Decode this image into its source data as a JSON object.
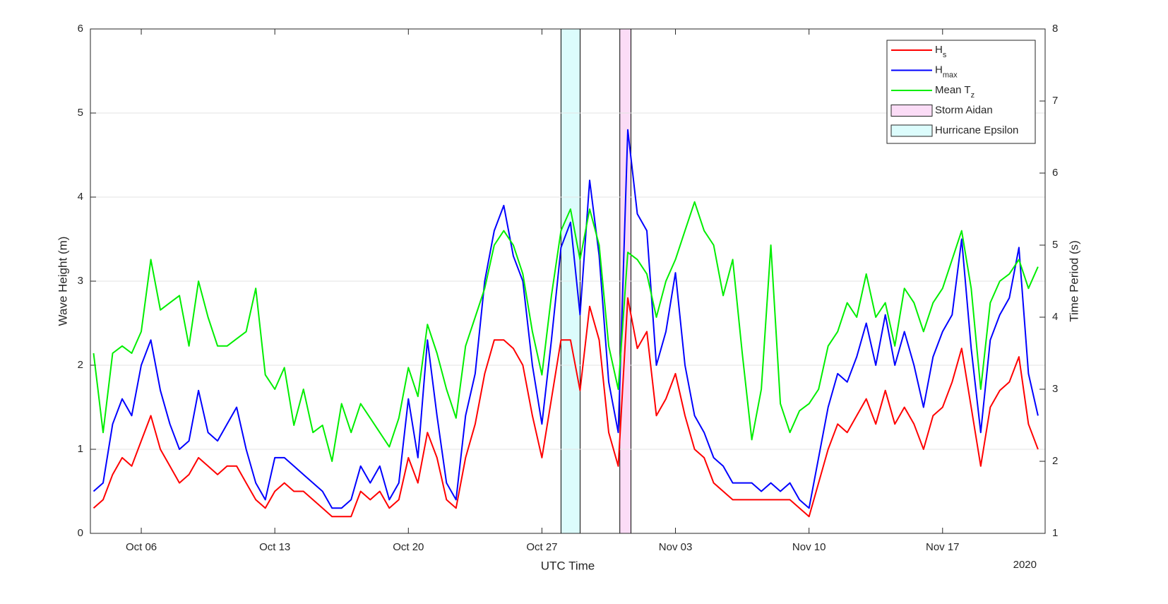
{
  "chart_data": {
    "type": "line",
    "xlabel": "UTC Time",
    "ylabel": "Wave Height (m)",
    "y2label": "Time Period (s)",
    "year_label": "2020",
    "x": [
      "2020-10-03 12:00",
      "2020-10-04 00:00",
      "2020-10-04 12:00",
      "2020-10-05 00:00",
      "2020-10-05 12:00",
      "2020-10-06 00:00",
      "2020-10-06 12:00",
      "2020-10-07 00:00",
      "2020-10-07 12:00",
      "2020-10-08 00:00",
      "2020-10-08 12:00",
      "2020-10-09 00:00",
      "2020-10-09 12:00",
      "2020-10-10 00:00",
      "2020-10-10 12:00",
      "2020-10-11 00:00",
      "2020-10-11 12:00",
      "2020-10-12 00:00",
      "2020-10-12 12:00",
      "2020-10-13 00:00",
      "2020-10-13 12:00",
      "2020-10-14 00:00",
      "2020-10-14 12:00",
      "2020-10-15 00:00",
      "2020-10-15 12:00",
      "2020-10-16 00:00",
      "2020-10-16 12:00",
      "2020-10-17 00:00",
      "2020-10-17 12:00",
      "2020-10-18 00:00",
      "2020-10-18 12:00",
      "2020-10-19 00:00",
      "2020-10-19 12:00",
      "2020-10-20 00:00",
      "2020-10-20 12:00",
      "2020-10-21 00:00",
      "2020-10-21 12:00",
      "2020-10-22 00:00",
      "2020-10-22 12:00",
      "2020-10-23 00:00",
      "2020-10-23 12:00",
      "2020-10-24 00:00",
      "2020-10-24 12:00",
      "2020-10-25 00:00",
      "2020-10-25 12:00",
      "2020-10-26 00:00",
      "2020-10-26 12:00",
      "2020-10-27 00:00",
      "2020-10-27 12:00",
      "2020-10-28 00:00",
      "2020-10-28 12:00",
      "2020-10-29 00:00",
      "2020-10-29 12:00",
      "2020-10-30 00:00",
      "2020-10-30 12:00",
      "2020-10-31 00:00",
      "2020-10-31 12:00",
      "2020-11-01 00:00",
      "2020-11-01 12:00",
      "2020-11-02 00:00",
      "2020-11-02 12:00",
      "2020-11-03 00:00",
      "2020-11-03 12:00",
      "2020-11-04 00:00",
      "2020-11-04 12:00",
      "2020-11-05 00:00",
      "2020-11-05 12:00",
      "2020-11-06 00:00",
      "2020-11-06 12:00",
      "2020-11-07 00:00",
      "2020-11-07 12:00",
      "2020-11-08 00:00",
      "2020-11-08 12:00",
      "2020-11-09 00:00",
      "2020-11-09 12:00",
      "2020-11-10 00:00",
      "2020-11-10 12:00",
      "2020-11-11 00:00",
      "2020-11-11 12:00",
      "2020-11-12 00:00",
      "2020-11-12 12:00",
      "2020-11-13 00:00",
      "2020-11-13 12:00",
      "2020-11-14 00:00",
      "2020-11-14 12:00",
      "2020-11-15 00:00",
      "2020-11-15 12:00",
      "2020-11-16 00:00",
      "2020-11-16 12:00",
      "2020-11-17 00:00",
      "2020-11-17 12:00",
      "2020-11-18 00:00",
      "2020-11-18 12:00",
      "2020-11-19 00:00",
      "2020-11-19 12:00",
      "2020-11-20 00:00",
      "2020-11-20 12:00",
      "2020-11-21 00:00",
      "2020-11-21 12:00",
      "2020-11-22 00:00"
    ],
    "series": [
      {
        "name": "H",
        "name_sub": "s",
        "color": "#ff0000",
        "values": [
          0.3,
          0.4,
          0.7,
          0.9,
          0.8,
          1.1,
          1.4,
          1.0,
          0.8,
          0.6,
          0.7,
          0.9,
          0.8,
          0.7,
          0.8,
          0.8,
          0.6,
          0.4,
          0.3,
          0.5,
          0.6,
          0.5,
          0.5,
          0.4,
          0.3,
          0.2,
          0.2,
          0.2,
          0.5,
          0.4,
          0.5,
          0.3,
          0.4,
          0.9,
          0.6,
          1.2,
          0.9,
          0.4,
          0.3,
          0.9,
          1.3,
          1.9,
          2.3,
          2.3,
          2.2,
          2.0,
          1.4,
          0.9,
          1.6,
          2.3,
          2.3,
          1.7,
          2.7,
          2.3,
          1.2,
          0.8,
          2.8,
          2.2,
          2.4,
          1.4,
          1.6,
          1.9,
          1.4,
          1.0,
          0.9,
          0.6,
          0.5,
          0.4,
          0.4,
          0.4,
          0.4,
          0.4,
          0.4,
          0.4,
          0.3,
          0.2,
          0.6,
          1.0,
          1.3,
          1.2,
          1.4,
          1.6,
          1.3,
          1.7,
          1.3,
          1.5,
          1.3,
          1.0,
          1.4,
          1.5,
          1.8,
          2.2,
          1.5,
          0.8,
          1.5,
          1.7,
          1.8,
          2.1,
          1.3,
          1.0
        ]
      },
      {
        "name": "H",
        "name_sub": "max",
        "color": "#0000ff",
        "values": [
          0.5,
          0.6,
          1.3,
          1.6,
          1.4,
          2.0,
          2.3,
          1.7,
          1.3,
          1.0,
          1.1,
          1.7,
          1.2,
          1.1,
          1.3,
          1.5,
          1.0,
          0.6,
          0.4,
          0.9,
          0.9,
          0.8,
          0.7,
          0.6,
          0.5,
          0.3,
          0.3,
          0.4,
          0.8,
          0.6,
          0.8,
          0.4,
          0.6,
          1.6,
          0.9,
          2.3,
          1.4,
          0.6,
          0.4,
          1.4,
          1.9,
          3.0,
          3.6,
          3.9,
          3.3,
          3.0,
          2.0,
          1.3,
          2.3,
          3.4,
          3.7,
          2.6,
          4.2,
          3.3,
          1.8,
          1.2,
          4.8,
          3.8,
          3.6,
          2.0,
          2.4,
          3.1,
          2.0,
          1.4,
          1.2,
          0.9,
          0.8,
          0.6,
          0.6,
          0.6,
          0.5,
          0.6,
          0.5,
          0.6,
          0.4,
          0.3,
          0.9,
          1.5,
          1.9,
          1.8,
          2.1,
          2.5,
          2.0,
          2.6,
          2.0,
          2.4,
          2.0,
          1.5,
          2.1,
          2.4,
          2.6,
          3.5,
          2.2,
          1.2,
          2.3,
          2.6,
          2.8,
          3.4,
          1.9,
          1.4
        ]
      },
      {
        "name": "Mean T",
        "name_sub": "z",
        "color": "#00ee00",
        "axis": "y2",
        "values": [
          3.5,
          2.4,
          3.5,
          3.6,
          3.5,
          3.8,
          4.8,
          4.1,
          4.2,
          4.3,
          3.6,
          4.5,
          4.0,
          3.6,
          3.6,
          3.7,
          3.8,
          4.4,
          3.2,
          3.0,
          3.3,
          2.5,
          3.0,
          2.4,
          2.5,
          2.0,
          2.8,
          2.4,
          2.8,
          2.6,
          2.4,
          2.2,
          2.6,
          3.3,
          2.9,
          3.9,
          3.5,
          3.0,
          2.6,
          3.6,
          4.0,
          4.4,
          5.0,
          5.2,
          5.0,
          4.6,
          3.8,
          3.2,
          4.3,
          5.2,
          5.5,
          4.8,
          5.5,
          5.0,
          3.6,
          3.0,
          4.9,
          4.8,
          4.6,
          4.0,
          4.5,
          4.8,
          5.2,
          5.6,
          5.2,
          5.0,
          4.3,
          4.8,
          3.5,
          2.3,
          3.0,
          5.0,
          2.8,
          2.4,
          2.7,
          2.8,
          3.0,
          3.6,
          3.8,
          4.2,
          4.0,
          4.6,
          4.0,
          4.2,
          3.6,
          4.4,
          4.2,
          3.8,
          4.2,
          4.4,
          4.8,
          5.2,
          4.4,
          3.0,
          4.2,
          4.5,
          4.6,
          4.8,
          4.4,
          4.7
        ]
      }
    ],
    "shaded_regions": [
      {
        "name": "Storm Aidan",
        "color": "#fbdcf6",
        "start": "2020-10-31 02:00",
        "end": "2020-10-31 16:00"
      },
      {
        "name": "Hurricane Epsilon",
        "color": "#dcfcfc",
        "start": "2020-10-28 00:00",
        "end": "2020-10-29 00:00"
      }
    ],
    "xlim": [
      "2020-10-03 08:00",
      "2020-11-22 09:00"
    ],
    "xticks": [
      {
        "value": "2020-10-06 00:00",
        "label": "Oct 06"
      },
      {
        "value": "2020-10-13 00:00",
        "label": "Oct 13"
      },
      {
        "value": "2020-10-20 00:00",
        "label": "Oct 20"
      },
      {
        "value": "2020-10-27 00:00",
        "label": "Oct 27"
      },
      {
        "value": "2020-11-03 00:00",
        "label": "Nov 03"
      },
      {
        "value": "2020-11-10 00:00",
        "label": "Nov 10"
      },
      {
        "value": "2020-11-17 00:00",
        "label": "Nov 17"
      }
    ],
    "ylim": [
      0,
      6
    ],
    "yticks": [
      0,
      1,
      2,
      3,
      4,
      5,
      6
    ],
    "y2lim": [
      1,
      8
    ],
    "y2ticks": [
      1,
      2,
      3,
      4,
      5,
      6,
      7,
      8
    ],
    "grid": true,
    "legend": "upper right"
  }
}
